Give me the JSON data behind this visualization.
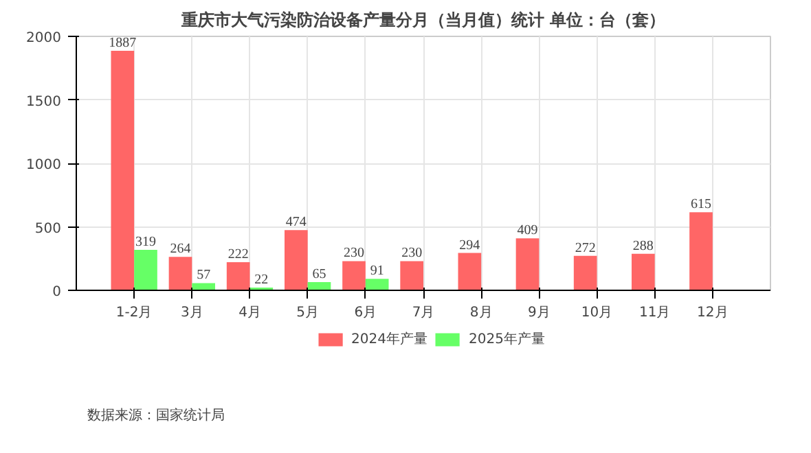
{
  "chart_data": {
    "type": "bar",
    "title": "重庆市大气污染防治设备产量分月（当月值）统计 单位：台（套）",
    "categories": [
      "1-2月",
      "3月",
      "4月",
      "5月",
      "6月",
      "7月",
      "8月",
      "9月",
      "10月",
      "11月",
      "12月"
    ],
    "series": [
      {
        "name": "2024年产量",
        "color": "#ff6666",
        "values": [
          1887,
          264,
          222,
          474,
          230,
          230,
          294,
          409,
          272,
          288,
          615
        ]
      },
      {
        "name": "2025年产量",
        "color": "#66ff66",
        "values": [
          319,
          57,
          22,
          65,
          91,
          null,
          null,
          null,
          null,
          null,
          null
        ]
      }
    ],
    "ylim": [
      0,
      2000
    ],
    "yticks": [
      0,
      500,
      1000,
      1500,
      2000
    ],
    "grid": true,
    "legend": "bottom",
    "data_labels": true,
    "annotations": [
      "数据来源：国家统计局"
    ]
  }
}
